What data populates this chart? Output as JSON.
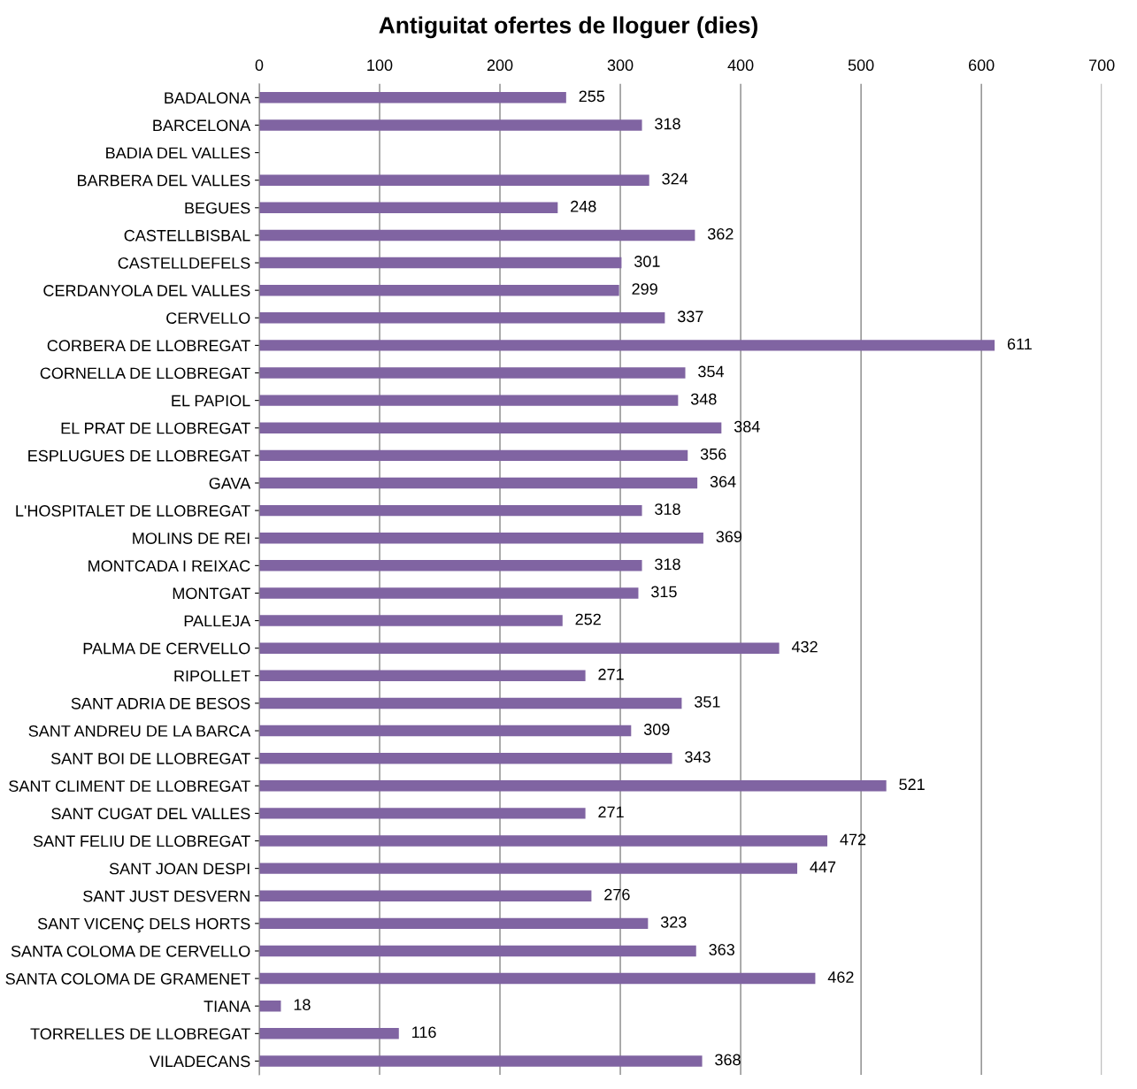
{
  "chart_data": {
    "type": "bar",
    "orientation": "horizontal",
    "title": "Antiguitat ofertes de lloguer (dies)",
    "categories": [
      "BADALONA",
      "BARCELONA",
      "BADIA DEL VALLES",
      "BARBERA DEL VALLES",
      "BEGUES",
      "CASTELLBISBAL",
      "CASTELLDEFELS",
      "CERDANYOLA DEL VALLES",
      "CERVELLO",
      "CORBERA DE LLOBREGAT",
      "CORNELLA DE LLOBREGAT",
      "EL PAPIOL",
      "EL PRAT DE LLOBREGAT",
      "ESPLUGUES DE LLOBREGAT",
      "GAVA",
      "L'HOSPITALET DE LLOBREGAT",
      "MOLINS DE REI",
      "MONTCADA I REIXAC",
      "MONTGAT",
      "PALLEJA",
      "PALMA DE CERVELLO",
      "RIPOLLET",
      "SANT ADRIA DE BESOS",
      "SANT ANDREU DE LA BARCA",
      "SANT BOI DE LLOBREGAT",
      "SANT CLIMENT DE LLOBREGAT",
      "SANT CUGAT DEL VALLES",
      "SANT FELIU DE LLOBREGAT",
      "SANT JOAN DESPI",
      "SANT JUST DESVERN",
      "SANT VICENÇ DELS HORTS",
      "SANTA COLOMA DE CERVELLO",
      "SANTA COLOMA DE GRAMENET",
      "TIANA",
      "TORRELLES DE LLOBREGAT",
      "VILADECANS"
    ],
    "values": [
      255,
      318,
      null,
      324,
      248,
      362,
      301,
      299,
      337,
      611,
      354,
      348,
      384,
      356,
      364,
      318,
      369,
      318,
      315,
      252,
      432,
      271,
      351,
      309,
      343,
      521,
      271,
      472,
      447,
      276,
      323,
      363,
      462,
      18,
      116,
      368
    ],
    "color": "#8064a2",
    "xlim": [
      0,
      700
    ],
    "xticks": [
      0,
      100,
      200,
      300,
      400,
      500,
      600,
      700
    ],
    "grid": "x",
    "data_labels": true
  }
}
